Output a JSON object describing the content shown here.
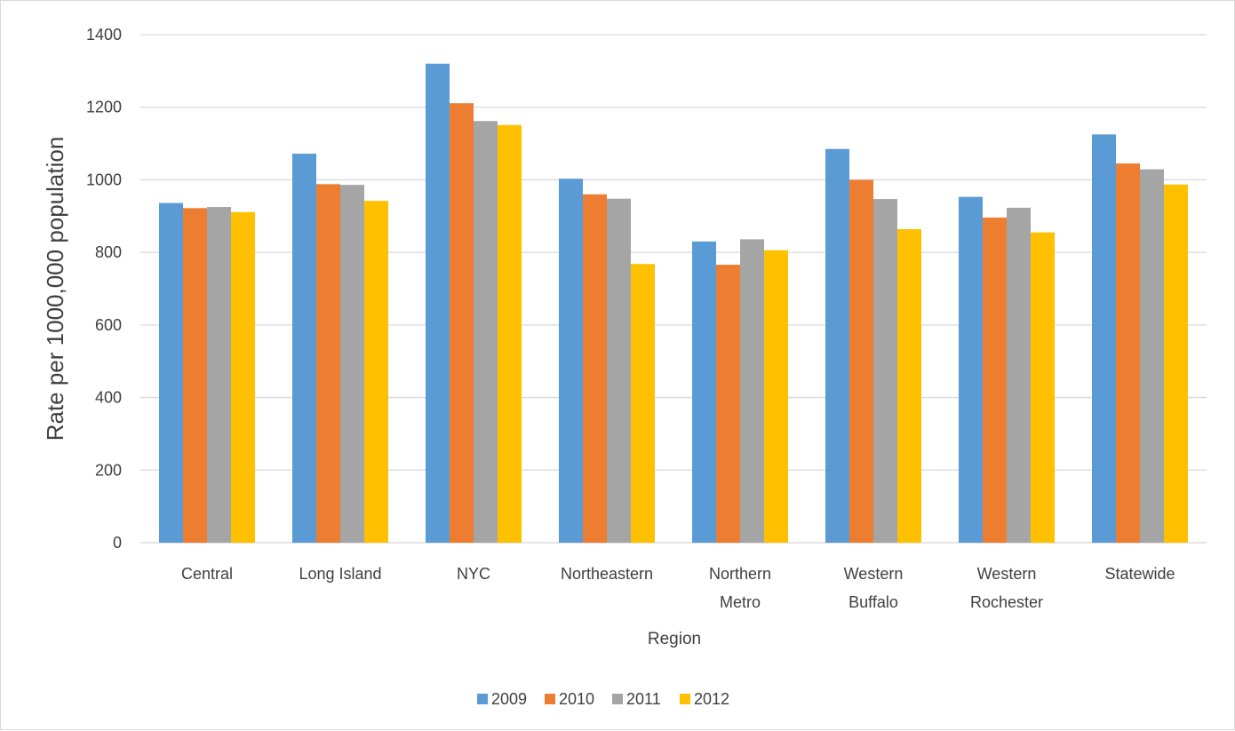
{
  "chart_data": {
    "type": "bar",
    "title": "",
    "xlabel": "Region",
    "ylabel": "Rate per 1000,000 population",
    "ylim": [
      0,
      1400
    ],
    "yticks": [
      0,
      200,
      400,
      600,
      800,
      1000,
      1200,
      1400
    ],
    "grid": true,
    "legend_position": "bottom",
    "categories": [
      [
        "Central"
      ],
      [
        "Long Island"
      ],
      [
        "NYC"
      ],
      [
        "Northeastern"
      ],
      [
        "Northern",
        "Metro"
      ],
      [
        "Western",
        "Buffalo"
      ],
      [
        "Western",
        "Rochester"
      ],
      [
        "Statewide"
      ]
    ],
    "series": [
      {
        "name": "2009",
        "color": "#5b9bd5",
        "values": [
          936,
          1072,
          1320,
          1003,
          830,
          1085,
          953,
          1125
        ]
      },
      {
        "name": "2010",
        "color": "#ed7d31",
        "values": [
          922,
          988,
          1211,
          960,
          766,
          1000,
          896,
          1045
        ]
      },
      {
        "name": "2011",
        "color": "#a5a5a5",
        "values": [
          925,
          986,
          1162,
          948,
          836,
          947,
          923,
          1029
        ]
      },
      {
        "name": "2012",
        "color": "#ffc000",
        "values": [
          911,
          942,
          1151,
          768,
          806,
          864,
          855,
          987
        ]
      }
    ]
  }
}
